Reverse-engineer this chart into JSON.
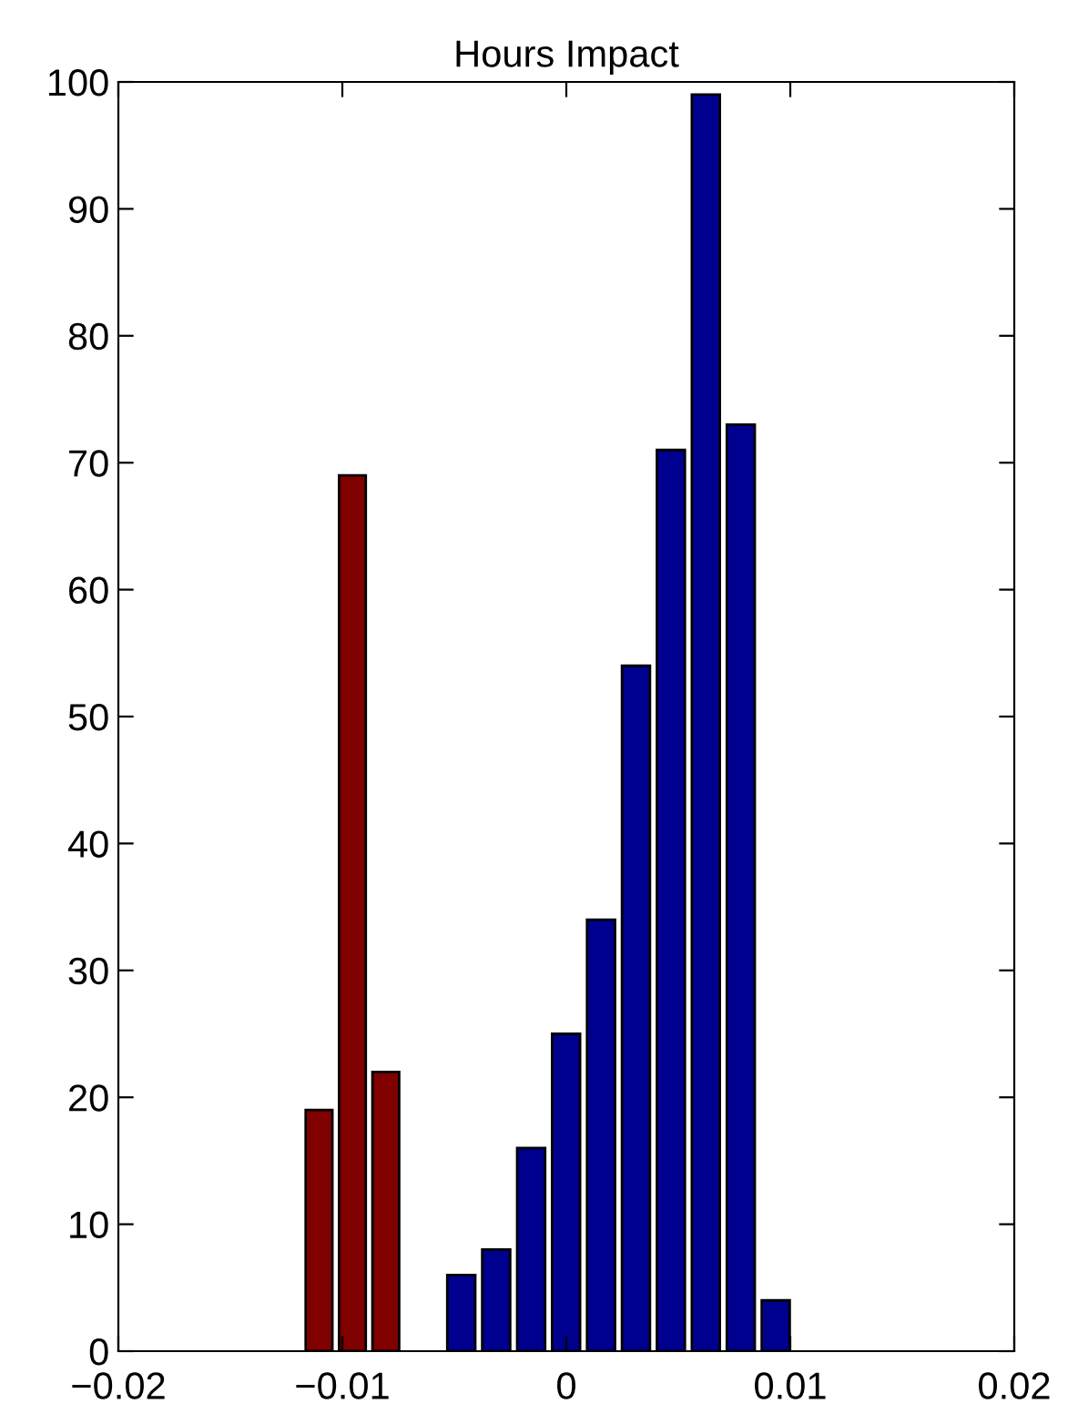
{
  "chart_data": {
    "type": "bar",
    "title": "Hours Impact",
    "series": [
      {
        "color": "#800000",
        "x": [
          -0.01104,
          -0.00955,
          -0.00806
        ],
        "values": [
          19,
          69,
          22
        ]
      },
      {
        "color": "#00008f",
        "x": [
          -0.00469,
          -0.00313,
          -0.00157,
          -1e-05,
          0.00155,
          0.00311,
          0.00467,
          0.00623,
          0.00779,
          0.00935
        ],
        "values": [
          6,
          8,
          16,
          25,
          34,
          54,
          71,
          99,
          73,
          4
        ]
      }
    ],
    "xlim": [
      -0.02,
      0.02
    ],
    "xticks": [
      {
        "value": -0.02,
        "label": "−0.02"
      },
      {
        "value": -0.01,
        "label": "−0.01"
      },
      0,
      0.01,
      0.02
    ],
    "ylim": [
      0,
      100
    ],
    "yticks": [
      0,
      10,
      20,
      30,
      40,
      50,
      60,
      70,
      80,
      90,
      100
    ],
    "grid": false,
    "legend": false
  }
}
